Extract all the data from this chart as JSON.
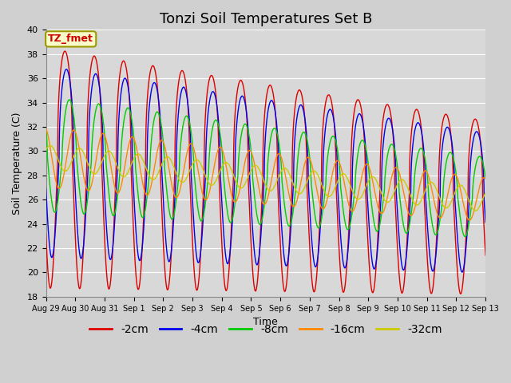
{
  "title": "Tonzi Soil Temperatures Set B",
  "xlabel": "Time",
  "ylabel": "Soil Temperature (C)",
  "ylim": [
    18,
    40
  ],
  "yticks": [
    18,
    20,
    22,
    24,
    26,
    28,
    30,
    32,
    34,
    36,
    38,
    40
  ],
  "xtick_labels": [
    "Aug 29",
    "Aug 30",
    "Aug 31",
    "Sep 1",
    "Sep 2",
    "Sep 3",
    "Sep 4",
    "Sep 5",
    "Sep 6",
    "Sep 7",
    "Sep 8",
    "Sep 9",
    "Sep 10",
    "Sep 11",
    "Sep 12",
    "Sep 13"
  ],
  "annotation_text": "TZ_fmet",
  "annotation_color": "#cc0000",
  "annotation_bg": "#ffffcc",
  "annotation_border": "#999900",
  "series_colors": [
    "#dd0000",
    "#0000ee",
    "#00cc00",
    "#ff8800",
    "#cccc00"
  ],
  "series_labels": [
    "-2cm",
    "-4cm",
    "-8cm",
    "-16cm",
    "-32cm"
  ],
  "plot_bg": "#d8d8d8",
  "grid_color": "#ffffff",
  "title_fontsize": 13,
  "axis_fontsize": 9,
  "legend_fontsize": 10,
  "num_days": 15,
  "points_per_day": 240
}
